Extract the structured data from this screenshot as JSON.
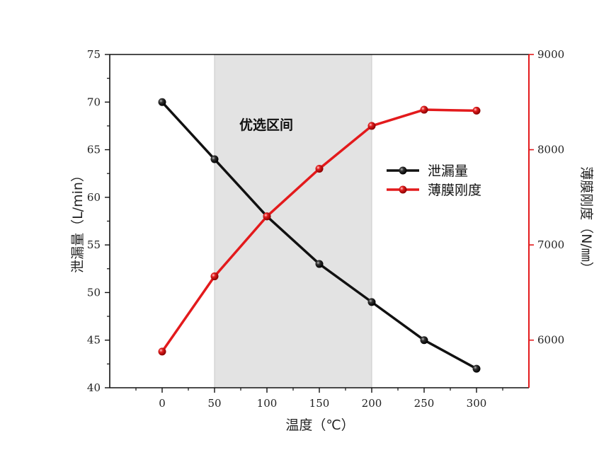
{
  "chart_data": {
    "type": "line",
    "xlabel": "温度（℃）",
    "ylabel_left": "泄漏量（L/min）",
    "ylabel_right": "薄膜刚度（N/㎜）",
    "xlim": [
      -50,
      350
    ],
    "ylim_left": [
      40,
      75
    ],
    "ylim_right": [
      5500,
      9000
    ],
    "x_ticks": [
      0,
      50,
      100,
      150,
      200,
      250,
      300
    ],
    "y_ticks_left": [
      40,
      45,
      50,
      55,
      60,
      65,
      70,
      75
    ],
    "y_ticks_right": [
      6000,
      7000,
      8000,
      9000
    ],
    "highlight_region": {
      "x_from": 50,
      "x_to": 200,
      "label": "优选区间",
      "color": "#e3e3e3"
    },
    "legend_position": "right-center",
    "grid": false,
    "series": [
      {
        "name": "泄漏量",
        "axis": "left",
        "color": "#111111",
        "x": [
          0,
          50,
          100,
          150,
          200,
          250,
          300
        ],
        "y": [
          70,
          64,
          58,
          53,
          49,
          45,
          42
        ]
      },
      {
        "name": "薄膜刚度",
        "axis": "right",
        "color": "#e31a1c",
        "x": [
          0,
          50,
          100,
          150,
          200,
          250,
          300
        ],
        "y": [
          5880,
          6670,
          7300,
          7800,
          8250,
          8420,
          8410
        ]
      }
    ]
  }
}
